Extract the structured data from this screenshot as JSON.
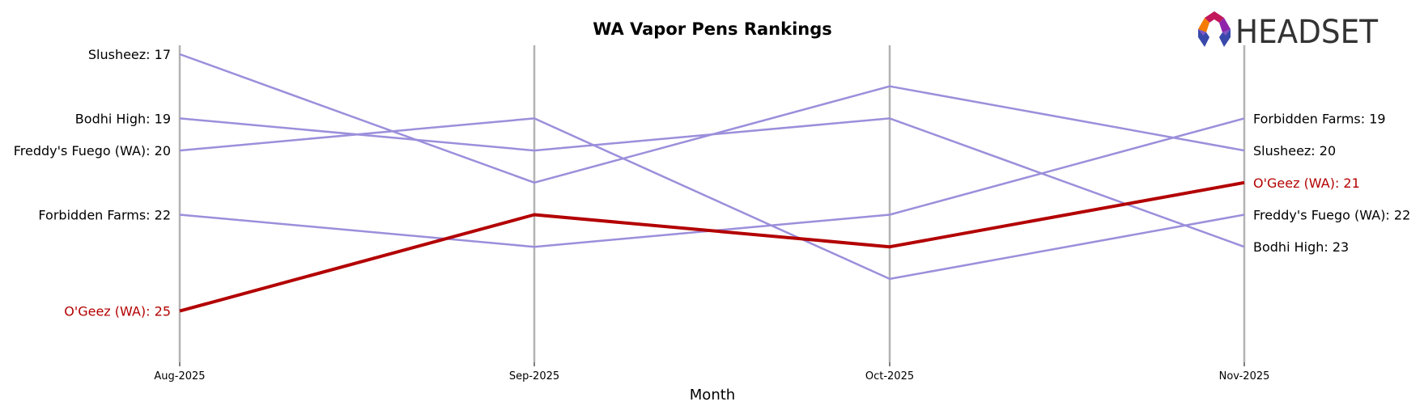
{
  "chart_data": {
    "type": "line",
    "subtype": "bump",
    "title": "WA Vapor Pens Rankings",
    "xlabel": "Month",
    "ylabel": "",
    "categories": [
      "Aug-2025",
      "Sep-2025",
      "Oct-2025",
      "Nov-2025"
    ],
    "y_inverted": true,
    "ylim": [
      17,
      25
    ],
    "grid": "vertical lines at each month",
    "legend": "none (direct labels at first and last points)",
    "series": [
      {
        "name": "Slusheez",
        "values": [
          17,
          21,
          18,
          20
        ],
        "color": "#9b8fdb",
        "highlight": false
      },
      {
        "name": "Bodhi High",
        "values": [
          19,
          20,
          19,
          23
        ],
        "color": "#9b8fdb",
        "highlight": false
      },
      {
        "name": "Freddy's Fuego (WA)",
        "values": [
          20,
          19,
          24,
          22
        ],
        "color": "#9b8fdb",
        "highlight": false
      },
      {
        "name": "Forbidden Farms",
        "values": [
          22,
          23,
          22,
          19
        ],
        "color": "#9b8fdb",
        "highlight": false
      },
      {
        "name": "O'Geez (WA)",
        "values": [
          25,
          22,
          23,
          21
        ],
        "color": "#b30000",
        "highlight": true
      }
    ]
  },
  "labels": {
    "left": [
      {
        "text": "Slusheez: 17",
        "rank": 17,
        "highlight": false
      },
      {
        "text": "Bodhi High: 19",
        "rank": 19,
        "highlight": false
      },
      {
        "text": "Freddy's Fuego (WA): 20",
        "rank": 20,
        "highlight": false
      },
      {
        "text": "Forbidden Farms: 22",
        "rank": 22,
        "highlight": false
      },
      {
        "text": "O'Geez (WA): 25",
        "rank": 25,
        "highlight": true
      }
    ],
    "right": [
      {
        "text": "Forbidden Farms: 19",
        "rank": 19,
        "highlight": false
      },
      {
        "text": "Slusheez: 20",
        "rank": 20,
        "highlight": false
      },
      {
        "text": "O'Geez (WA): 21",
        "rank": 21,
        "highlight": true
      },
      {
        "text": "Freddy's Fuego (WA): 22",
        "rank": 22,
        "highlight": false
      },
      {
        "text": "Bodhi High: 23",
        "rank": 23,
        "highlight": false
      }
    ]
  },
  "logo": {
    "text": "HEADSET"
  },
  "colors": {
    "line": "#9b8fdb",
    "highlight": "#b30000",
    "gridline": "#b3b3b3",
    "text": "#000000"
  }
}
